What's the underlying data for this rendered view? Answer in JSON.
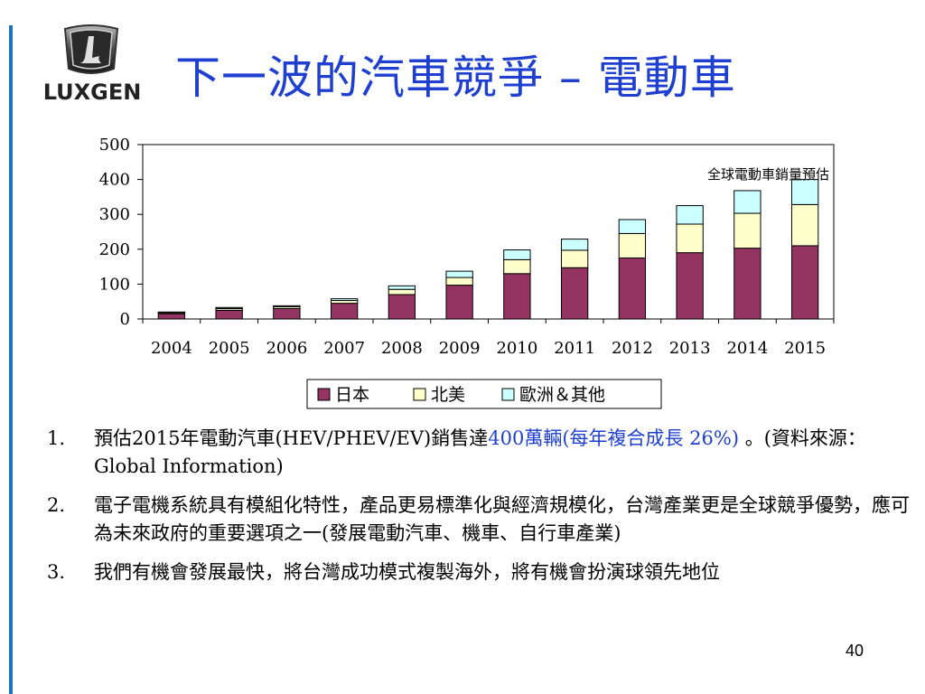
{
  "logo": {
    "text": "LUXGEN"
  },
  "title": "下一波的汽車競爭 – 電動車",
  "chart_data": {
    "type": "bar",
    "stacked": true,
    "categories": [
      "2004",
      "2005",
      "2006",
      "2007",
      "2008",
      "2009",
      "2010",
      "2011",
      "2012",
      "2013",
      "2014",
      "2015"
    ],
    "series": [
      {
        "name": "日本",
        "color": "#943463",
        "values": [
          15,
          25,
          30,
          45,
          70,
          97,
          130,
          147,
          175,
          190,
          203,
          210
        ]
      },
      {
        "name": "北美",
        "color": "#ffffcc",
        "values": [
          3,
          5,
          5,
          8,
          15,
          22,
          40,
          50,
          70,
          82,
          100,
          118
        ]
      },
      {
        "name": "歐洲＆其他",
        "color": "#ccffff",
        "values": [
          2,
          3,
          3,
          5,
          10,
          18,
          28,
          32,
          40,
          53,
          65,
          72
        ]
      }
    ],
    "ylim": [
      0,
      500
    ],
    "yticks": [
      0,
      100,
      200,
      300,
      400,
      500
    ],
    "annotation": "全球電動車銷量預估",
    "legend_position": "bottom",
    "grid": false
  },
  "bullets": [
    {
      "num": "1.",
      "parts": [
        {
          "text": "預估2015年電動汽車(HEV/PHEV/EV)銷售達"
        },
        {
          "text": "400萬輛(每年複合成長 26%)",
          "highlight": true
        },
        {
          "text": " 。(資料來源：Global Information)"
        }
      ]
    },
    {
      "num": "2.",
      "parts": [
        {
          "text": "電子電機系統具有模組化特性，產品更易標準化與經濟規模化，台灣產業更是全球競爭優勢，應可為未來政府的重要選項之一(發展電動汽車、機車、自行車產業)"
        }
      ]
    },
    {
      "num": "3.",
      "parts": [
        {
          "text": "我們有機會發展最快，將台灣成功模式複製海外，將有機會扮演球領先地位"
        }
      ]
    }
  ],
  "page_number": "40"
}
